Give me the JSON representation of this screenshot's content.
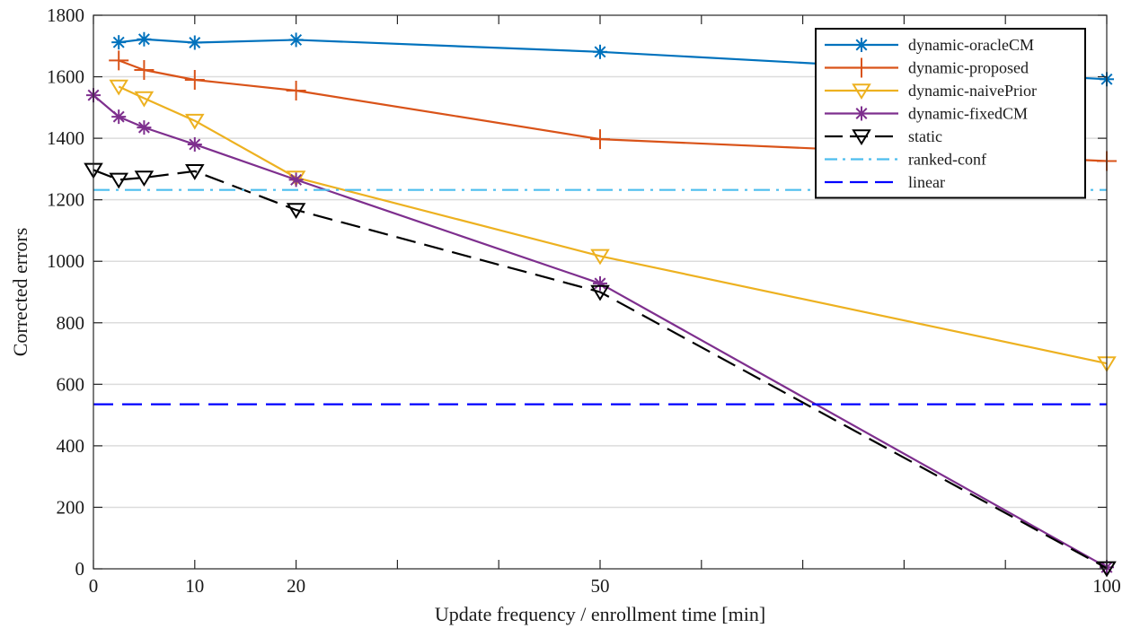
{
  "chart_data": {
    "type": "line",
    "title": "",
    "xlabel": "Update frequency / enrollment time [min]",
    "ylabel": "Corrected errors",
    "xlim": [
      0,
      100
    ],
    "ylim": [
      0,
      1800
    ],
    "x_ticks": [
      0,
      10,
      20,
      30,
      40,
      50,
      60,
      70,
      80,
      90,
      100
    ],
    "x_tick_labels": [
      "0",
      "10",
      "20",
      "",
      "",
      "50",
      "",
      "",
      "",
      "",
      "100"
    ],
    "y_ticks": [
      0,
      200,
      400,
      600,
      800,
      1000,
      1200,
      1400,
      1600,
      1800
    ],
    "y_tick_labels": [
      "0",
      "200",
      "400",
      "600",
      "800",
      "1000",
      "1200",
      "1400",
      "1600",
      "1800"
    ],
    "grid": "horizontal",
    "legend_position": "top-right",
    "series": [
      {
        "name": "dynamic-oracleCM",
        "color": "#0072BD",
        "line": "solid",
        "marker": "asterisk",
        "x": [
          2.5,
          5,
          10,
          20,
          50,
          100
        ],
        "y": [
          1712,
          1722,
          1711,
          1720,
          1681,
          1592
        ]
      },
      {
        "name": "dynamic-proposed",
        "color": "#D95319",
        "line": "solid",
        "marker": "plus",
        "x": [
          2.5,
          5,
          10,
          20,
          50,
          100
        ],
        "y": [
          1653,
          1622,
          1590,
          1555,
          1397,
          1326
        ]
      },
      {
        "name": "dynamic-naivePrior",
        "color": "#EDB120",
        "line": "solid",
        "marker": "triangle-down",
        "x": [
          2.5,
          5,
          10,
          20,
          50,
          100
        ],
        "y": [
          1568,
          1530,
          1457,
          1272,
          1017,
          668
        ]
      },
      {
        "name": "dynamic-fixedCM",
        "color": "#7E2F8E",
        "line": "solid",
        "marker": "asterisk",
        "x": [
          0,
          2.5,
          5,
          10,
          20,
          50,
          100
        ],
        "y": [
          1540,
          1470,
          1435,
          1380,
          1265,
          928,
          5
        ]
      },
      {
        "name": "static",
        "color": "#000000",
        "line": "dashed",
        "marker": "triangle-down",
        "x": [
          0,
          2.5,
          5,
          10,
          20,
          50,
          100
        ],
        "y": [
          1297,
          1265,
          1272,
          1293,
          1167,
          900,
          2
        ]
      },
      {
        "name": "ranked-conf",
        "color": "#4DBEEE",
        "line": "dashdot",
        "marker": "none",
        "x": [
          0,
          100
        ],
        "y": [
          1232,
          1232
        ]
      },
      {
        "name": "linear",
        "color": "#0000FF",
        "line": "dashed",
        "marker": "none",
        "x": [
          0,
          100
        ],
        "y": [
          535,
          535
        ]
      }
    ]
  }
}
